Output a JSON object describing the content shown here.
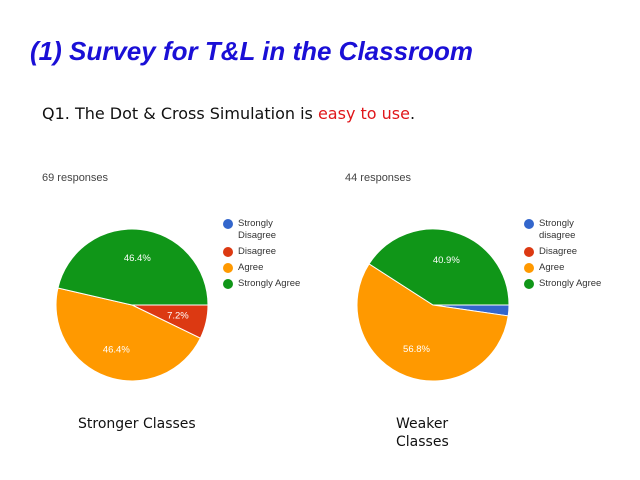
{
  "slide": {
    "title": "(1) Survey for T&L in the Classroom",
    "question_prefix": "Q1. The Dot & Cross Simulation is ",
    "question_highlight": "easy to use",
    "question_suffix": "."
  },
  "colors": {
    "title": "#1a0fd6",
    "highlight": "#e0161a",
    "blue": "#3366cc",
    "red": "#dc3912",
    "orange": "#ff9900",
    "green": "#109618"
  },
  "chart_data": [
    {
      "type": "pie",
      "responses_label": "69 responses",
      "caption": "Stronger Classes",
      "legend_position": "right",
      "slices": [
        {
          "label": "Strongly Disagree",
          "value": 0,
          "color": "#3366cc",
          "data_label": ""
        },
        {
          "label": "Disagree",
          "value": 7.2,
          "color": "#dc3912",
          "data_label": "7.2%"
        },
        {
          "label": "Agree",
          "value": 46.4,
          "color": "#ff9900",
          "data_label": "46.4%"
        },
        {
          "label": "Strongly Agree",
          "value": 46.4,
          "color": "#109618",
          "data_label": "46.4%"
        }
      ]
    },
    {
      "type": "pie",
      "responses_label": "44 responses",
      "caption": "Weaker Classes",
      "legend_position": "right",
      "slices": [
        {
          "label": "Strongly disagree",
          "value": 2.3,
          "color": "#3366cc",
          "data_label": ""
        },
        {
          "label": "Disagree",
          "value": 0,
          "color": "#dc3912",
          "data_label": ""
        },
        {
          "label": "Agree",
          "value": 56.8,
          "color": "#ff9900",
          "data_label": "56.8%"
        },
        {
          "label": "Strongly Agree",
          "value": 40.9,
          "color": "#109618",
          "data_label": "40.9%"
        }
      ]
    }
  ]
}
